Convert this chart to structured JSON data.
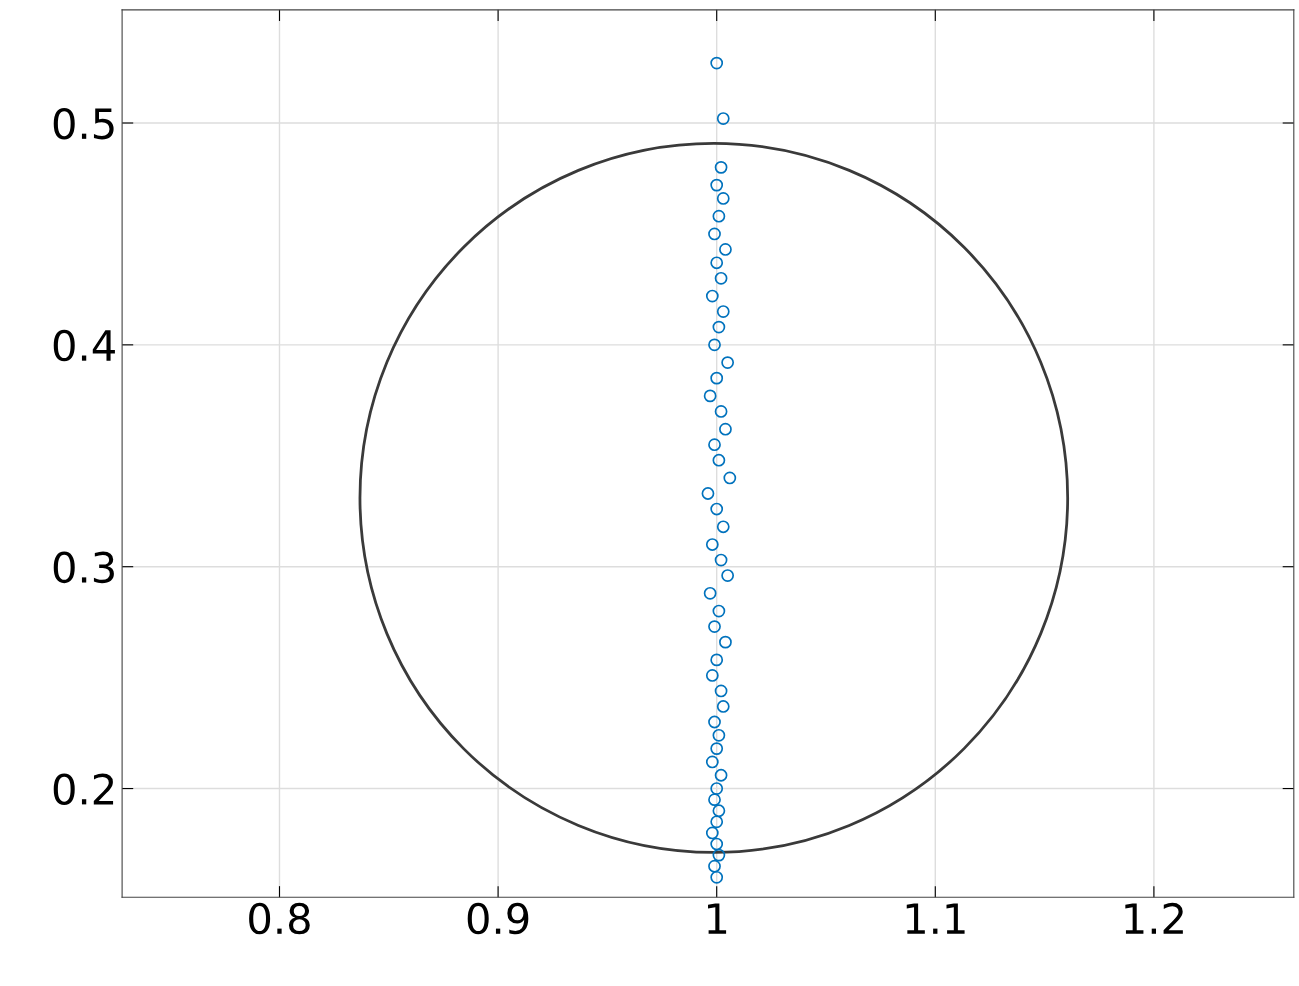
{
  "chart_data": {
    "type": "scatter",
    "xlim": [
      0.728,
      1.264
    ],
    "ylim": [
      0.151,
      0.551
    ],
    "xticks": [
      0.8,
      0.9,
      1,
      1.1,
      1.2
    ],
    "yticks": [
      0.2,
      0.3,
      0.4,
      0.5
    ],
    "grid": true,
    "marker": "circle",
    "series": [
      {
        "type": "scatter",
        "color": "#0072bd",
        "x": [
          1.0,
          1.003,
          1.002,
          1.0,
          1.003,
          1.001,
          0.999,
          1.004,
          1.0,
          1.002,
          0.998,
          1.003,
          1.001,
          0.999,
          1.005,
          1.0,
          0.997,
          1.002,
          1.004,
          0.999,
          1.001,
          1.006,
          0.996,
          1.0,
          1.003,
          0.998,
          1.002,
          1.005,
          0.997,
          1.001,
          0.999,
          1.004,
          1.0,
          0.998,
          1.002,
          1.003,
          0.999,
          1.001,
          1.0,
          0.998,
          1.002,
          1.0,
          0.999,
          1.001,
          1.0,
          0.998,
          1.0,
          1.001,
          0.999,
          1.0
        ],
        "values": [
          0.527,
          0.502,
          0.48,
          0.472,
          0.466,
          0.458,
          0.45,
          0.443,
          0.437,
          0.43,
          0.422,
          0.415,
          0.408,
          0.4,
          0.392,
          0.385,
          0.377,
          0.37,
          0.362,
          0.355,
          0.348,
          0.34,
          0.333,
          0.326,
          0.318,
          0.31,
          0.303,
          0.296,
          0.288,
          0.28,
          0.273,
          0.266,
          0.258,
          0.251,
          0.244,
          0.237,
          0.23,
          0.224,
          0.218,
          0.212,
          0.206,
          0.2,
          0.195,
          0.19,
          0.185,
          0.18,
          0.175,
          0.17,
          0.165,
          0.16
        ]
      }
    ]
  }
}
